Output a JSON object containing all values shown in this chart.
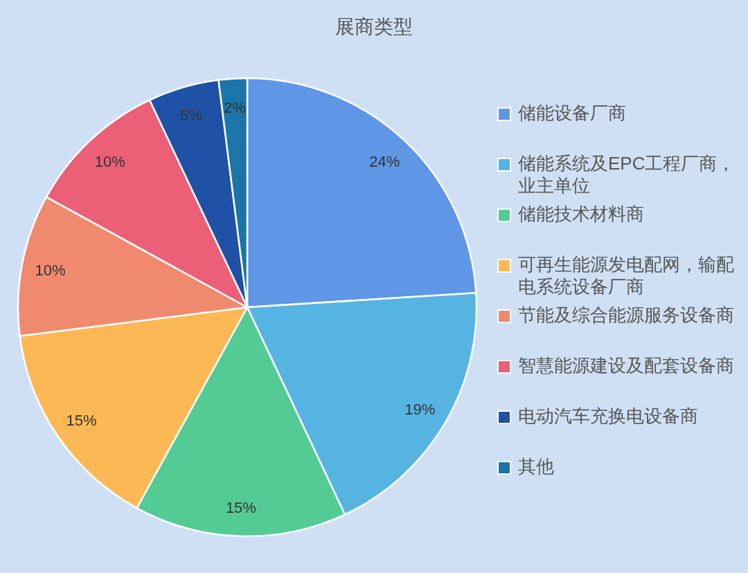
{
  "chart_data": {
    "type": "pie",
    "title": "展商类型",
    "categories": [
      "储能设备厂商",
      "储能系统及EPC工程厂商，业主单位",
      "储能技术材料商",
      "可再生能源发电配网，输配电系统设备厂商",
      "节能及综合能源服务设备商",
      "智慧能源建设及配套设备商",
      "电动汽车充换电设备商",
      "其他"
    ],
    "values": [
      24,
      19,
      15,
      15,
      10,
      10,
      5,
      2
    ],
    "value_labels": [
      "24%",
      "19%",
      "15%",
      "15%",
      "10%",
      "10%",
      "5%",
      "2%"
    ],
    "colors": [
      "#6096e6",
      "#56b4e3",
      "#53cb95",
      "#fdb856",
      "#ef8a6e",
      "#eb6077",
      "#1f52a6",
      "#1b75a8"
    ],
    "legend": "right"
  }
}
